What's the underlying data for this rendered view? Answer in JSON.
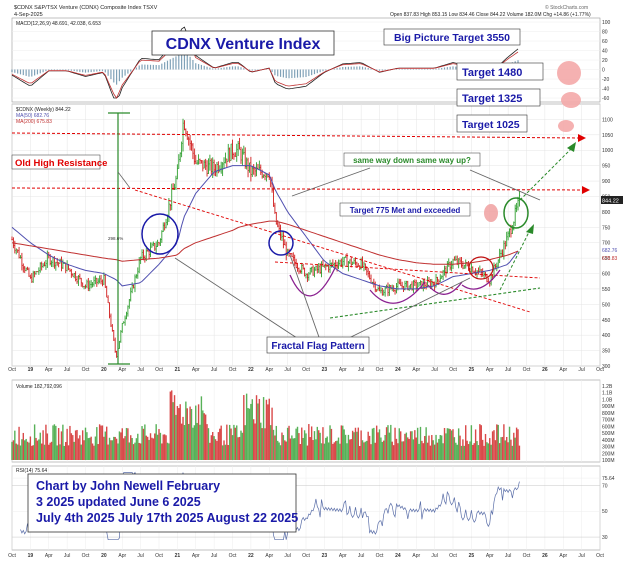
{
  "header": {
    "symbol": "$CDNX S&P/TSX Venture (CDNX) Composite Index TSXV",
    "date": "4-Sep-2025",
    "quote": "Open 837.83  High 853.15  Low 834.46  Close 844.22  Volume 182.0M  Chg +14.86 (+1.77%)",
    "brand": "© StockCharts.com"
  },
  "colors": {
    "price_up": "#2e9e2e",
    "price_down": "#d01c1c",
    "ma50": "#5050b0",
    "ma200": "#c03030",
    "annotation_blue": "#1a1aa8",
    "annotation_red": "#e00000",
    "annotation_green": "#2a8a2a",
    "panel_bg": "#ffffff"
  },
  "macd": {
    "legend": "MACD(12,26,9) 48.691, 42.038, 6.653",
    "ticks": [
      "100",
      "80",
      "60",
      "40",
      "20",
      "0",
      "-20",
      "-40",
      "-60"
    ]
  },
  "price_panel": {
    "legend_symbol": "$CDNX (Weekly) 844.22",
    "legend_ma50": "MA(50) 682.76",
    "legend_ma200": "MA(200) 675.83",
    "ticks": [
      "1100",
      "1050",
      "1000",
      "950",
      "900",
      "850",
      "800",
      "750",
      "700",
      "650",
      "600",
      "550",
      "500",
      "450",
      "400",
      "350",
      "300"
    ],
    "last_label": "844.22",
    "ma50_label": "682.76",
    "ma200_label": "675.83",
    "pct_label": "298.6%",
    "annotations": {
      "title": "CDNX Venture Index",
      "big_picture": "Big Picture Target 3550",
      "target_1480": "Target 1480",
      "target_1325": "Target 1325",
      "target_1025": "Target 1025",
      "old_high": "Old High Resistance",
      "same_way": "same way down same way up?",
      "target_775": "Target 775 Met and exceeded",
      "fractal": "Fractal Flag Pattern"
    }
  },
  "volume_panel": {
    "legend": "Volume 182,792,096",
    "ticks": [
      "1.2B",
      "1.1B",
      "1.0B",
      "900M",
      "800M",
      "700M",
      "600M",
      "500M",
      "400M",
      "300M",
      "200M",
      "100M"
    ]
  },
  "rsi_panel": {
    "legend": "RSI(14) 75.64",
    "ticks": [
      "75.64",
      "70",
      "50",
      "30"
    ],
    "credit": "Chart by John Newell February 3 2025 updated June 6 2025 July 4th 2025 July 17th 2025 August 22 2025"
  },
  "time_axis": [
    "Oct",
    "19",
    "Apr",
    "Jul",
    "Oct",
    "20",
    "Apr",
    "Jul",
    "Oct",
    "21",
    "Apr",
    "Jul",
    "Oct",
    "22",
    "Apr",
    "Jul",
    "Oct",
    "23",
    "Apr",
    "Jul",
    "Oct",
    "24",
    "Apr",
    "Jul",
    "Oct",
    "25",
    "Apr",
    "Jul",
    "Oct",
    "26",
    "Apr",
    "Jul",
    "Oct"
  ],
  "chart_data": {
    "type": "line",
    "title": "CDNX Venture Index",
    "ylabel": "",
    "ylim": [
      300,
      1150
    ],
    "x_range": [
      "2018-10",
      "2026-10"
    ],
    "x": [
      "2018-10",
      "2019-01",
      "2019-04",
      "2019-07",
      "2019-10",
      "2020-01",
      "2020-03",
      "2020-04",
      "2020-07",
      "2020-10",
      "2021-01",
      "2021-02",
      "2021-04",
      "2021-07",
      "2021-10",
      "2021-11",
      "2022-01",
      "2022-04",
      "2022-05",
      "2022-07",
      "2022-10",
      "2023-01",
      "2023-04",
      "2023-07",
      "2023-10",
      "2024-01",
      "2024-04",
      "2024-07",
      "2024-10",
      "2025-01",
      "2025-04",
      "2025-07",
      "2025-09"
    ],
    "series": [
      {
        "name": "$CDNX",
        "values": [
          710,
          580,
          650,
          620,
          560,
          580,
          330,
          430,
          650,
          700,
          920,
          1100,
          960,
          940,
          1000,
          1000,
          930,
          930,
          770,
          660,
          600,
          620,
          640,
          630,
          540,
          560,
          560,
          570,
          640,
          620,
          580,
          720,
          844
        ]
      },
      {
        "name": "MA(50)",
        "values": [
          750,
          700,
          660,
          630,
          610,
          600,
          580,
          560,
          570,
          630,
          700,
          780,
          860,
          930,
          950,
          950,
          950,
          920,
          870,
          800,
          720,
          640,
          600,
          580,
          560,
          550,
          550,
          560,
          590,
          600,
          610,
          630,
          683
        ]
      },
      {
        "name": "MA(200)",
        "values": [
          700,
          690,
          680,
          670,
          660,
          650,
          645,
          640,
          645,
          650,
          660,
          680,
          700,
          720,
          740,
          750,
          760,
          770,
          770,
          760,
          740,
          720,
          700,
          680,
          660,
          645,
          635,
          630,
          630,
          635,
          645,
          660,
          676
        ]
      }
    ],
    "volume_ylim": [
      0,
      1200000000
    ],
    "rsi_last": 75.64,
    "macd_last": [
      48.691,
      42.038,
      6.653
    ]
  }
}
